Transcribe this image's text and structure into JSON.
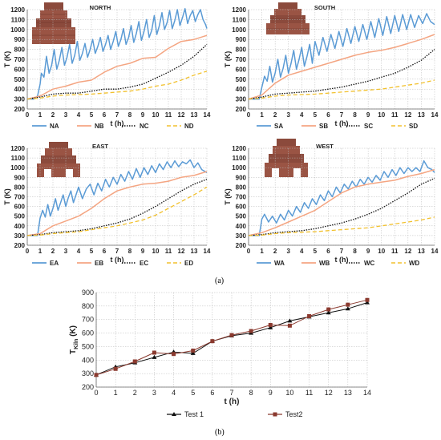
{
  "colors": {
    "A": "#5b9bd5",
    "B": "#f4a582",
    "C": "#111111",
    "D": "#f2c12e",
    "test1": "#111111",
    "test2": "#8b3a2f",
    "grid": "#b8b8b8",
    "axis": "#666666"
  },
  "labels": {
    "panel_a": "(a)",
    "panel_b": "(b)"
  },
  "chart_data": [
    {
      "type": "line",
      "title": "NORTH",
      "xlabel": "t (h)",
      "ylabel": "T (K)",
      "xlim": [
        0,
        14
      ],
      "ylim": [
        200,
        1200
      ],
      "xstep": 1,
      "ystep": 100,
      "grid": true,
      "legend": "bottom",
      "series": [
        {
          "name": "NA",
          "style": "solid",
          "x": [
            0,
            0.5,
            0.8,
            1.0,
            1.1,
            1.3,
            1.5,
            1.7,
            1.9,
            2.1,
            2.3,
            2.5,
            2.7,
            2.9,
            3.1,
            3.3,
            3.5,
            3.7,
            3.9,
            4.1,
            4.3,
            4.5,
            4.7,
            4.9,
            5.1,
            5.3,
            5.5,
            5.7,
            5.9,
            6.1,
            6.3,
            6.5,
            6.7,
            6.9,
            7.1,
            7.3,
            7.5,
            7.7,
            7.9,
            8.1,
            8.3,
            8.5,
            8.7,
            8.9,
            9.1,
            9.3,
            9.5,
            9.7,
            9.9,
            10.1,
            10.3,
            10.5,
            10.7,
            10.9,
            11.1,
            11.3,
            11.5,
            11.7,
            11.9,
            12.1,
            12.3,
            12.5,
            12.7,
            12.9,
            13.1,
            13.3,
            13.5,
            13.7,
            13.9,
            14.0
          ],
          "y": [
            300,
            300,
            330,
            450,
            560,
            520,
            730,
            560,
            640,
            800,
            600,
            690,
            820,
            640,
            720,
            850,
            660,
            740,
            880,
            690,
            760,
            860,
            720,
            800,
            900,
            760,
            830,
            920,
            780,
            850,
            940,
            800,
            880,
            980,
            830,
            900,
            1010,
            850,
            920,
            1040,
            870,
            960,
            1080,
            890,
            980,
            1100,
            920,
            990,
            1140,
            950,
            1040,
            1170,
            1000,
            1070,
            1190,
            1010,
            1090,
            1200,
            1040,
            1120,
            1210,
            1060,
            1140,
            1190,
            1080,
            1150,
            1200,
            1100,
            1050,
            1010
          ]
        },
        {
          "name": "NB",
          "style": "solid",
          "x": [
            0,
            1,
            2,
            3,
            4,
            5,
            6,
            7,
            8,
            9,
            10,
            11,
            12,
            13,
            14
          ],
          "y": [
            300,
            330,
            400,
            430,
            470,
            490,
            570,
            630,
            660,
            710,
            720,
            810,
            880,
            900,
            940
          ]
        },
        {
          "name": "NC",
          "style": "dotted",
          "x": [
            0,
            1,
            2,
            3,
            4,
            5,
            6,
            7,
            8,
            9,
            10,
            11,
            12,
            13,
            14
          ],
          "y": [
            300,
            320,
            350,
            360,
            360,
            380,
            400,
            400,
            420,
            450,
            510,
            570,
            640,
            730,
            850
          ]
        },
        {
          "name": "ND",
          "style": "dashed",
          "x": [
            0,
            1,
            2,
            3,
            4,
            5,
            6,
            7,
            8,
            9,
            10,
            11,
            12,
            13,
            14
          ],
          "y": [
            300,
            310,
            330,
            340,
            345,
            350,
            360,
            370,
            380,
            400,
            430,
            450,
            490,
            540,
            580
          ]
        }
      ]
    },
    {
      "type": "line",
      "title": "SOUTH",
      "xlabel": "t (h)",
      "ylabel": "T (K)",
      "xlim": [
        0,
        14
      ],
      "ylim": [
        200,
        1200
      ],
      "xstep": 1,
      "ystep": 100,
      "grid": true,
      "legend": "bottom",
      "series": [
        {
          "name": "SA",
          "style": "solid",
          "x": [
            0,
            0.8,
            1.0,
            1.2,
            1.4,
            1.6,
            1.8,
            2.0,
            2.2,
            2.4,
            2.6,
            2.8,
            3.0,
            3.2,
            3.4,
            3.6,
            3.8,
            4.0,
            4.2,
            4.4,
            4.6,
            4.8,
            5.0,
            5.3,
            5.6,
            5.9,
            6.2,
            6.5,
            6.8,
            7.1,
            7.4,
            7.7,
            8.0,
            8.3,
            8.6,
            8.9,
            9.2,
            9.5,
            9.8,
            10.1,
            10.4,
            10.7,
            11.0,
            11.3,
            11.6,
            11.9,
            12.2,
            12.5,
            12.8,
            13.1,
            13.4,
            13.7,
            14.0
          ],
          "y": [
            300,
            300,
            420,
            530,
            480,
            630,
            470,
            560,
            700,
            520,
            610,
            740,
            560,
            660,
            790,
            600,
            700,
            820,
            630,
            730,
            850,
            660,
            880,
            740,
            920,
            780,
            950,
            810,
            980,
            830,
            1010,
            860,
            1030,
            880,
            1050,
            900,
            1080,
            920,
            1110,
            940,
            1130,
            960,
            1140,
            980,
            1150,
            1000,
            1150,
            1020,
            1140,
            1060,
            1160,
            1080,
            1050
          ]
        },
        {
          "name": "SB",
          "style": "solid",
          "x": [
            0,
            1,
            2,
            3,
            4,
            5,
            6,
            7,
            8,
            9,
            10,
            11,
            12,
            13,
            14
          ],
          "y": [
            300,
            340,
            460,
            540,
            580,
            620,
            660,
            700,
            740,
            770,
            790,
            820,
            860,
            900,
            950
          ]
        },
        {
          "name": "SC",
          "style": "dotted",
          "x": [
            0,
            1,
            2,
            3,
            4,
            5,
            6,
            7,
            8,
            9,
            10,
            11,
            12,
            13,
            14
          ],
          "y": [
            300,
            320,
            350,
            360,
            370,
            380,
            400,
            420,
            450,
            480,
            520,
            560,
            620,
            690,
            800
          ]
        },
        {
          "name": "SD",
          "style": "dashed",
          "x": [
            0,
            1,
            2,
            3,
            4,
            5,
            6,
            7,
            8,
            9,
            10,
            11,
            12,
            13,
            14
          ],
          "y": [
            300,
            310,
            330,
            340,
            345,
            350,
            360,
            370,
            380,
            390,
            400,
            420,
            440,
            460,
            490
          ]
        }
      ]
    },
    {
      "type": "line",
      "title": "EAST",
      "xlabel": "t (h)",
      "ylabel": "T (K)",
      "xlim": [
        0,
        14
      ],
      "ylim": [
        200,
        1200
      ],
      "xstep": 1,
      "ystep": 100,
      "grid": true,
      "legend": "bottom",
      "series": [
        {
          "name": "EA",
          "style": "solid",
          "x": [
            0,
            0.8,
            1.0,
            1.2,
            1.4,
            1.6,
            1.8,
            2.0,
            2.2,
            2.4,
            2.6,
            2.8,
            3.0,
            3.2,
            3.4,
            3.6,
            3.8,
            4.0,
            4.3,
            4.6,
            4.9,
            5.2,
            5.5,
            5.8,
            6.1,
            6.4,
            6.7,
            7.0,
            7.3,
            7.6,
            7.9,
            8.2,
            8.5,
            8.8,
            9.1,
            9.4,
            9.7,
            10.0,
            10.3,
            10.6,
            10.9,
            11.2,
            11.5,
            11.8,
            12.1,
            12.4,
            12.7,
            13.0,
            13.3,
            13.6,
            14.0
          ],
          "y": [
            300,
            300,
            480,
            560,
            490,
            620,
            500,
            580,
            680,
            560,
            640,
            720,
            600,
            690,
            760,
            640,
            720,
            800,
            680,
            780,
            830,
            720,
            840,
            760,
            880,
            800,
            900,
            830,
            930,
            860,
            960,
            880,
            990,
            900,
            1000,
            930,
            1020,
            950,
            1040,
            980,
            1060,
            1000,
            1070,
            1010,
            1060,
            1040,
            1080,
            1000,
            1050,
            980,
            950
          ]
        },
        {
          "name": "EB",
          "style": "solid",
          "x": [
            0,
            1,
            2,
            3,
            4,
            5,
            6,
            7,
            8,
            9,
            10,
            11,
            12,
            13,
            14
          ],
          "y": [
            300,
            320,
            400,
            450,
            500,
            580,
            680,
            760,
            800,
            830,
            840,
            860,
            900,
            920,
            960
          ]
        },
        {
          "name": "EC",
          "style": "dotted",
          "x": [
            0,
            1,
            2,
            3,
            4,
            5,
            6,
            7,
            8,
            9,
            10,
            11,
            12,
            13,
            14
          ],
          "y": [
            300,
            310,
            330,
            340,
            350,
            370,
            400,
            430,
            470,
            530,
            600,
            680,
            760,
            830,
            880
          ]
        },
        {
          "name": "ED",
          "style": "dashed",
          "x": [
            0,
            1,
            2,
            3,
            4,
            5,
            6,
            7,
            8,
            9,
            10,
            11,
            12,
            13,
            14
          ],
          "y": [
            300,
            305,
            320,
            330,
            340,
            360,
            380,
            400,
            430,
            460,
            510,
            580,
            650,
            720,
            800
          ]
        }
      ]
    },
    {
      "type": "line",
      "title": "WEST",
      "xlabel": "t (h)",
      "ylabel": "T (K)",
      "xlim": [
        0,
        14
      ],
      "ylim": [
        200,
        1200
      ],
      "xstep": 1,
      "ystep": 100,
      "grid": true,
      "legend": "bottom",
      "series": [
        {
          "name": "WA",
          "style": "solid",
          "x": [
            0,
            0.8,
            1.0,
            1.2,
            1.5,
            1.8,
            2.1,
            2.4,
            2.7,
            3.0,
            3.3,
            3.6,
            3.9,
            4.2,
            4.5,
            4.8,
            5.1,
            5.4,
            5.7,
            6.0,
            6.3,
            6.6,
            6.9,
            7.2,
            7.5,
            7.8,
            8.1,
            8.4,
            8.7,
            9.0,
            9.3,
            9.6,
            9.9,
            10.2,
            10.5,
            10.8,
            11.1,
            11.4,
            11.7,
            12.0,
            12.3,
            12.6,
            12.9,
            13.2,
            13.5,
            13.8,
            14.0
          ],
          "y": [
            300,
            300,
            470,
            520,
            440,
            500,
            430,
            520,
            460,
            560,
            500,
            600,
            540,
            640,
            580,
            680,
            620,
            720,
            660,
            760,
            700,
            800,
            740,
            830,
            780,
            860,
            800,
            880,
            830,
            900,
            850,
            920,
            870,
            960,
            900,
            980,
            920,
            1000,
            940,
            1000,
            960,
            1000,
            960,
            1070,
            1000,
            980,
            950
          ]
        },
        {
          "name": "WB",
          "style": "solid",
          "x": [
            0,
            1,
            2,
            3,
            4,
            5,
            6,
            7,
            8,
            9,
            10,
            11,
            12,
            13,
            14
          ],
          "y": [
            300,
            330,
            380,
            440,
            500,
            560,
            650,
            740,
            800,
            830,
            850,
            870,
            910,
            940,
            980
          ]
        },
        {
          "name": "WC",
          "style": "dotted",
          "x": [
            0,
            1,
            2,
            3,
            4,
            5,
            6,
            7,
            8,
            9,
            10,
            11,
            12,
            13,
            14
          ],
          "y": [
            300,
            310,
            330,
            340,
            350,
            370,
            400,
            430,
            470,
            520,
            580,
            660,
            740,
            830,
            890
          ]
        },
        {
          "name": "WD",
          "style": "dashed",
          "x": [
            0,
            1,
            2,
            3,
            4,
            5,
            6,
            7,
            8,
            9,
            10,
            11,
            12,
            13,
            14
          ],
          "y": [
            300,
            305,
            320,
            330,
            335,
            340,
            350,
            360,
            370,
            380,
            400,
            420,
            440,
            460,
            490
          ]
        }
      ]
    },
    {
      "type": "line",
      "title": "",
      "xlabel": "t (h)",
      "ylabel": "T",
      "ylabel_sub": "Kiln",
      "ylabel_unit": " (K)",
      "xlim": [
        0,
        14
      ],
      "ylim": [
        200,
        900
      ],
      "xstep": 1,
      "ystep": 100,
      "grid": true,
      "legend": "bottom",
      "series": [
        {
          "name": "Test 1",
          "style": "solid",
          "marker": "triangle",
          "x": [
            0,
            1,
            2,
            3,
            4,
            5,
            6,
            7,
            8,
            9,
            10,
            11,
            12,
            13,
            14
          ],
          "y": [
            290,
            350,
            380,
            420,
            460,
            450,
            540,
            580,
            600,
            640,
            690,
            720,
            750,
            780,
            825
          ]
        },
        {
          "name": "Test2",
          "style": "solid",
          "marker": "square",
          "x": [
            0,
            1,
            2,
            3,
            4,
            5,
            6,
            7,
            8,
            9,
            10,
            11,
            12,
            13,
            14
          ],
          "y": [
            290,
            335,
            390,
            455,
            445,
            470,
            540,
            585,
            615,
            660,
            655,
            725,
            775,
            810,
            845
          ]
        }
      ]
    }
  ]
}
